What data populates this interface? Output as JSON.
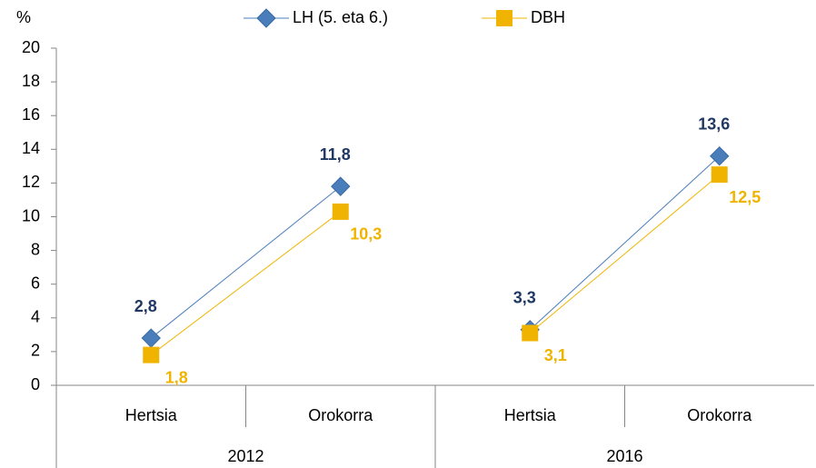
{
  "chart_data": {
    "type": "line",
    "ylabel": "%",
    "groups": [
      "2012",
      "2016"
    ],
    "categories": [
      "Hertsia",
      "Orokorra",
      "Hertsia",
      "Orokorra"
    ],
    "series": [
      {
        "name": "LH (5. eta 6.)",
        "color": "#4a7ebb",
        "label_color": "#1f3864",
        "marker": "diamond",
        "values": [
          2.8,
          11.8,
          3.3,
          13.6
        ],
        "value_labels": [
          "2,8",
          "11,8",
          "3,3",
          "13,6"
        ]
      },
      {
        "name": "DBH",
        "color": "#f0b400",
        "label_color": "#f0b400",
        "marker": "square",
        "values": [
          1.8,
          10.3,
          3.1,
          12.5
        ],
        "value_labels": [
          "1,8",
          "10,3",
          "3,1",
          "12,5"
        ]
      }
    ],
    "ylim": [
      0,
      20
    ],
    "yticks": [
      0,
      2,
      4,
      6,
      8,
      10,
      12,
      14,
      16,
      18,
      20
    ],
    "legend": "top"
  }
}
